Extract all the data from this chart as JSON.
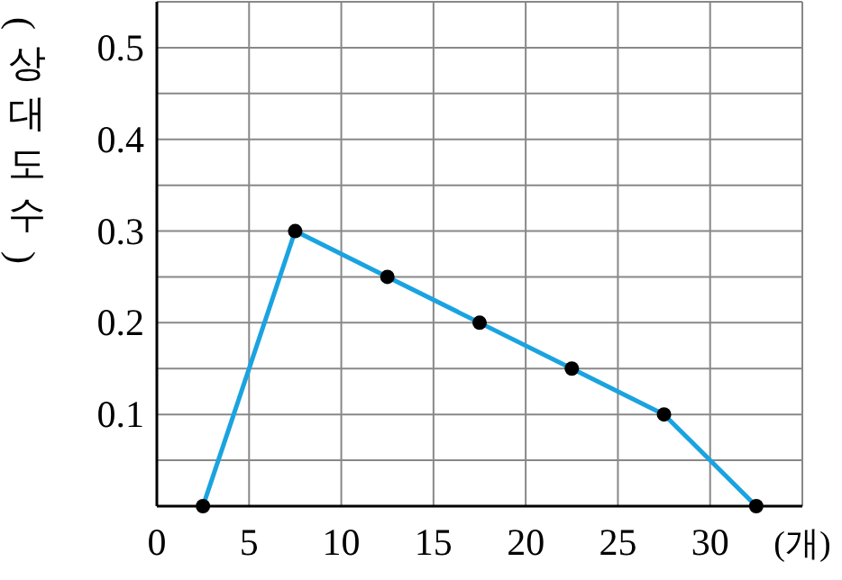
{
  "chart_data": {
    "type": "line",
    "xlabel": "(개)",
    "ylabel": "(상대도수)",
    "x": [
      2.5,
      7.5,
      12.5,
      17.5,
      22.5,
      27.5,
      32.5
    ],
    "series": [
      {
        "color": "#1aa3e0",
        "values": [
          0,
          0.3,
          0.25,
          0.2,
          0.15,
          0.1,
          0
        ]
      }
    ],
    "xlim": [
      0,
      35
    ],
    "ylim": [
      0,
      0.55
    ],
    "xticks": [
      0,
      5,
      10,
      15,
      20,
      25,
      30,
      {
        "value": 35,
        "label": null
      }
    ],
    "yticks": [
      {
        "value": 0.05,
        "label": null
      },
      0.1,
      {
        "value": 0.15,
        "label": null
      },
      0.2,
      {
        "value": 0.25,
        "label": null
      },
      0.3,
      {
        "value": 0.35,
        "label": null
      },
      0.4,
      {
        "value": 0.45,
        "label": null
      },
      0.5,
      {
        "value": 0.55,
        "label": null
      }
    ],
    "grid": true,
    "marker": "circle",
    "line_style": "solid",
    "legend": false
  }
}
